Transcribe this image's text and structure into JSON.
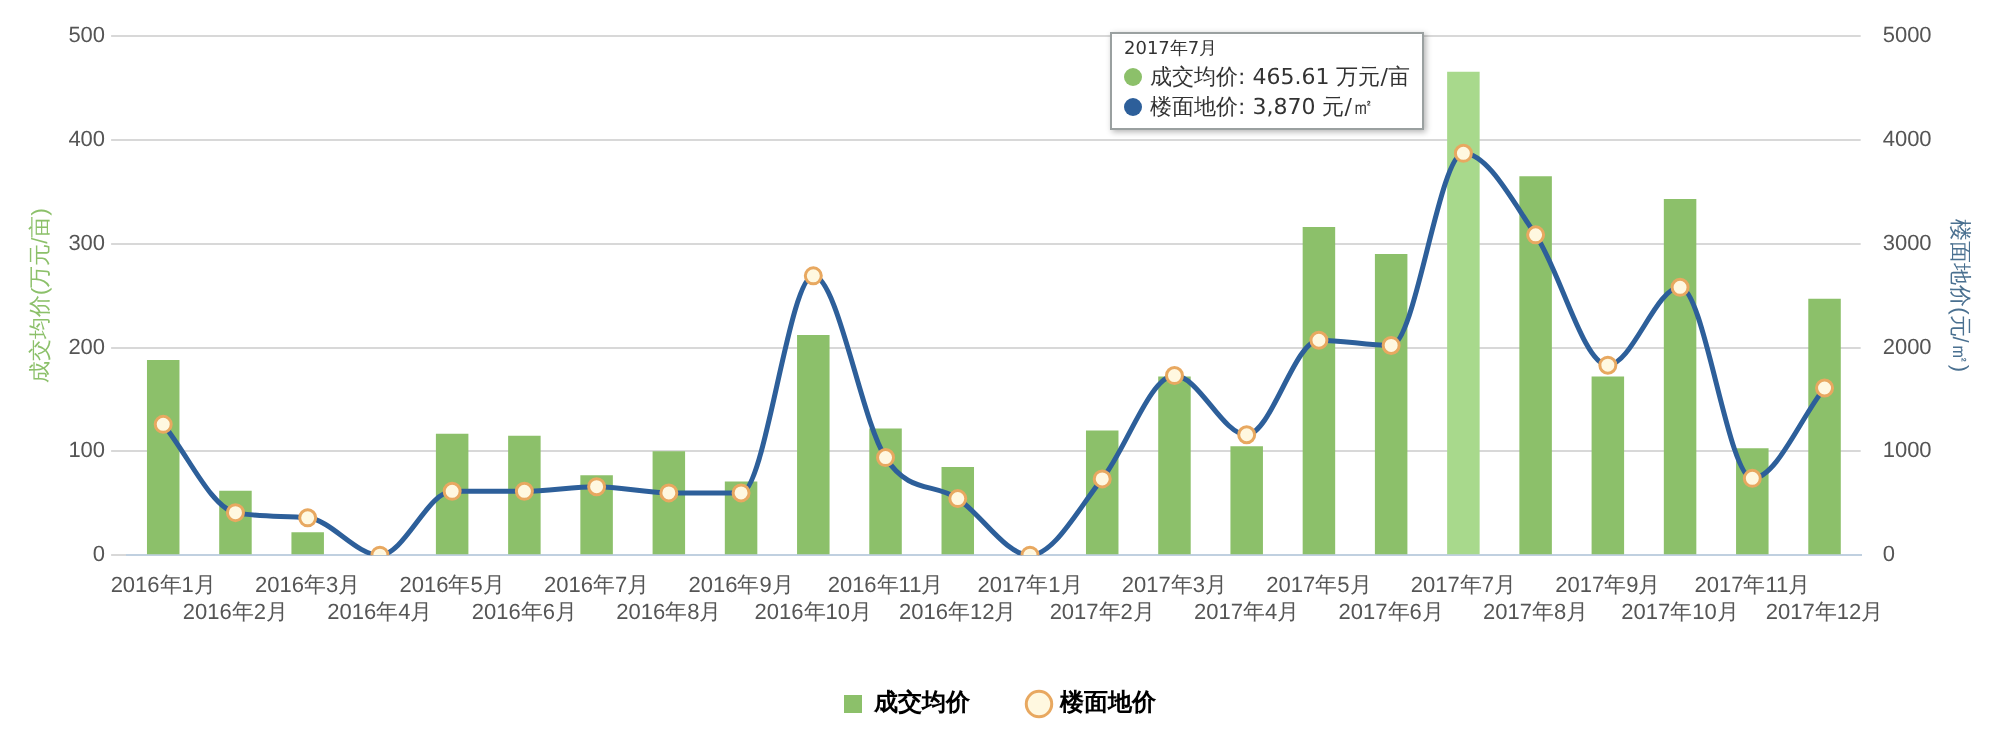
{
  "chart_data": {
    "type": "bar",
    "categories": [
      "2016年1月",
      "2016年2月",
      "2016年3月",
      "2016年4月",
      "2016年5月",
      "2016年6月",
      "2016年7月",
      "2016年8月",
      "2016年9月",
      "2016年10月",
      "2016年11月",
      "2016年12月",
      "2017年1月",
      "2017年2月",
      "2017年3月",
      "2017年4月",
      "2017年5月",
      "2017年6月",
      "2017年7月",
      "2017年8月",
      "2017年9月",
      "2017年10月",
      "2017年11月",
      "2017年12月"
    ],
    "series": [
      {
        "name": "成交均价",
        "color": "#8cc06a",
        "colors": [
          "#8cc06a",
          "#8cc06a",
          "#8cc06a",
          "#8cc06a",
          "#8cc06a",
          "#8cc06a",
          "#8cc06a",
          "#8cc06a",
          "#8cc06a",
          "#8cc06a",
          "#8cc06a",
          "#8cc06a",
          "#8cc06a",
          "#8cc06a",
          "#8cc06a",
          "#8cc06a",
          "#8cc06a",
          "#8cc06a",
          "#a8d98c",
          "#8cc06a",
          "#8cc06a",
          "#8cc06a",
          "#8cc06a",
          "#8cc06a"
        ],
        "values": [
          188,
          62,
          22,
          0,
          117,
          115,
          77,
          100,
          71,
          212,
          122,
          85,
          0,
          120,
          172,
          105,
          316,
          290,
          465.61,
          365,
          172,
          343,
          103,
          247
        ]
      },
      {
        "name": "楼面地价",
        "type": "line",
        "axis": "y2",
        "color": "#2d5f9a",
        "values": [
          1260,
          410,
          360,
          0,
          615,
          615,
          660,
          600,
          600,
          2690,
          940,
          545,
          0,
          735,
          1730,
          1160,
          2070,
          2020,
          3870,
          3085,
          1830,
          2580,
          740,
          1610
        ]
      }
    ],
    "ylabel": "成交均价(万元/亩)",
    "y2label": "楼面地价(元/㎡)",
    "ylim": [
      0,
      500
    ],
    "yticks": [
      0,
      100,
      200,
      300,
      400,
      500
    ],
    "y2lim": [
      0,
      5000
    ],
    "y2ticks": [
      0,
      1000,
      2000,
      3000,
      4000,
      5000
    ],
    "annotations": [
      "2017年7月",
      "成交均价: 465.61 万元/亩",
      "楼面地价: 3,870 元/㎡"
    ],
    "grid": "y",
    "legend": "bottom",
    "marker": "circle",
    "line_style": "solid"
  }
}
